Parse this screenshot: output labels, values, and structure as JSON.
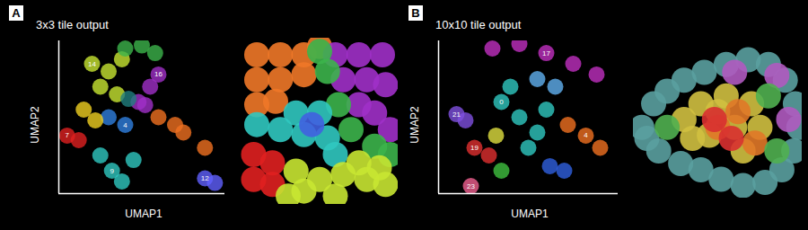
{
  "chart_data": [
    {
      "type": "scatter",
      "annotations": [
        {
          "text": "A"
        }
      ],
      "title": "3x3 tile output",
      "xlabel": "UMAP1",
      "ylabel": "UMAP2",
      "xlim": [
        0,
        100
      ],
      "ylim": [
        0,
        100
      ],
      "tick_labels": false,
      "series": [
        {
          "name": "14",
          "color": "#c8e632",
          "x": [
            20,
            30,
            25,
            38,
            35
          ],
          "y": [
            85,
            80,
            70,
            88,
            65
          ]
        },
        {
          "color": "#3cb44b",
          "x": [
            40,
            50,
            58
          ],
          "y": [
            95,
            97,
            92
          ]
        },
        {
          "name": "16",
          "color": "#a030c8",
          "x": [
            60,
            55,
            48,
            52
          ],
          "y": [
            78,
            70,
            60,
            58
          ]
        },
        {
          "color": "#f07020",
          "x": [
            60,
            75,
            88,
            70
          ],
          "y": [
            50,
            40,
            30,
            45
          ]
        },
        {
          "name": "9",
          "color": "#30c8c0",
          "x": [
            32,
            38,
            45,
            25
          ],
          "y": [
            15,
            8,
            22,
            25
          ]
        },
        {
          "name": "4",
          "color": "#3080e0",
          "x": [
            40,
            30
          ],
          "y": [
            45,
            50
          ]
        },
        {
          "name": "7",
          "color": "#e02020",
          "x": [
            5,
            12
          ],
          "y": [
            38,
            35
          ]
        },
        {
          "color": "#f0d020",
          "x": [
            15,
            22
          ],
          "y": [
            55,
            48
          ]
        },
        {
          "name": "12",
          "color": "#6060ff",
          "x": [
            88,
            94
          ],
          "y": [
            10,
            7
          ]
        },
        {
          "color": "#208080",
          "x": [
            42
          ],
          "y": [
            62
          ]
        }
      ]
    },
    {
      "type": "scatter",
      "xlim": [
        0,
        100
      ],
      "ylim": [
        0,
        100
      ],
      "tick_labels": false,
      "series": [
        {
          "color": "#f07828",
          "x": [
            10,
            25,
            40,
            10,
            25,
            40,
            10,
            22,
            50
          ],
          "y": [
            90,
            90,
            90,
            75,
            75,
            78,
            60,
            62,
            95
          ]
        },
        {
          "color": "#a030c8",
          "x": [
            60,
            75,
            90,
            65,
            80,
            92,
            85,
            95,
            75
          ],
          "y": [
            90,
            90,
            90,
            75,
            75,
            72,
            55,
            45,
            60
          ]
        },
        {
          "color": "#3cb44b",
          "x": [
            55,
            62,
            70,
            85,
            95,
            50
          ],
          "y": [
            80,
            60,
            45,
            35,
            30,
            92
          ]
        },
        {
          "color": "#30c8c0",
          "x": [
            10,
            25,
            40,
            55,
            35,
            50,
            60
          ],
          "y": [
            48,
            45,
            42,
            40,
            55,
            55,
            30
          ]
        },
        {
          "color": "#4060e0",
          "x": [
            45
          ],
          "y": [
            48
          ]
        },
        {
          "color": "#e02020",
          "x": [
            8,
            20,
            8,
            20
          ],
          "y": [
            30,
            25,
            15,
            12
          ]
        },
        {
          "color": "#c8e632",
          "x": [
            35,
            50,
            65,
            80,
            92,
            40,
            60,
            75,
            88,
            30
          ],
          "y": [
            20,
            15,
            18,
            15,
            12,
            8,
            5,
            25,
            22,
            5
          ]
        }
      ]
    },
    {
      "type": "scatter",
      "annotations": [
        {
          "text": "B"
        }
      ],
      "title": "10x10 tile output",
      "xlabel": "UMAP1",
      "ylabel": "UMAP2",
      "xlim": [
        0,
        100
      ],
      "ylim": [
        0,
        100
      ],
      "tick_labels": false,
      "series": [
        {
          "name": "17",
          "color": "#c030c0",
          "x": [
            60,
            30,
            45,
            75,
            88
          ],
          "y": [
            92,
            95,
            98,
            85,
            78
          ]
        },
        {
          "name": "0",
          "color": "#30c8c0",
          "x": [
            35,
            45,
            55,
            50,
            40,
            60
          ],
          "y": [
            60,
            50,
            40,
            30,
            70,
            55
          ]
        },
        {
          "name": "4",
          "color": "#f07020",
          "x": [
            82,
            72,
            90
          ],
          "y": [
            38,
            45,
            30
          ]
        },
        {
          "color": "#3060e0",
          "x": [
            62,
            70
          ],
          "y": [
            18,
            15
          ]
        },
        {
          "color": "#60b0f0",
          "x": [
            55,
            65
          ],
          "y": [
            75,
            70
          ]
        },
        {
          "name": "19",
          "color": "#e03030",
          "x": [
            20,
            28
          ],
          "y": [
            30,
            25
          ]
        },
        {
          "color": "#40c040",
          "x": [
            35
          ],
          "y": [
            15
          ]
        },
        {
          "name": "21",
          "color": "#8050e0",
          "x": [
            10,
            15
          ],
          "y": [
            52,
            48
          ]
        },
        {
          "name": "23",
          "color": "#f06090",
          "x": [
            18
          ],
          "y": [
            5
          ]
        },
        {
          "color": "#e0e040",
          "x": [
            32
          ],
          "y": [
            38
          ]
        }
      ]
    },
    {
      "type": "scatter",
      "xlim": [
        0,
        100
      ],
      "ylim": [
        0,
        100
      ],
      "tick_labels": false,
      "series": [
        {
          "color": "#5aa0a0",
          "x": [
            5,
            12,
            20,
            30,
            42,
            55,
            68,
            80,
            90,
            96,
            98,
            95,
            88,
            78,
            65,
            52,
            40,
            28,
            15,
            8
          ],
          "y": [
            45,
            60,
            68,
            75,
            80,
            85,
            88,
            85,
            75,
            60,
            45,
            30,
            18,
            10,
            8,
            12,
            18,
            22,
            30,
            38
          ]
        },
        {
          "color": "#b05ac0",
          "x": [
            60,
            85,
            92
          ],
          "y": [
            80,
            78,
            50
          ]
        },
        {
          "color": "#d0c040",
          "x": [
            30,
            40,
            50,
            45,
            60,
            55,
            70,
            65,
            35,
            75
          ],
          "y": [
            50,
            60,
            55,
            40,
            45,
            65,
            60,
            30,
            38,
            45
          ]
        },
        {
          "color": "#e07828",
          "x": [
            50,
            62,
            72
          ],
          "y": [
            45,
            55,
            35
          ]
        },
        {
          "color": "#d83030",
          "x": [
            48,
            58
          ],
          "y": [
            50,
            38
          ]
        },
        {
          "color": "#50b050",
          "x": [
            20,
            80,
            85
          ],
          "y": [
            45,
            65,
            30
          ]
        }
      ]
    }
  ]
}
